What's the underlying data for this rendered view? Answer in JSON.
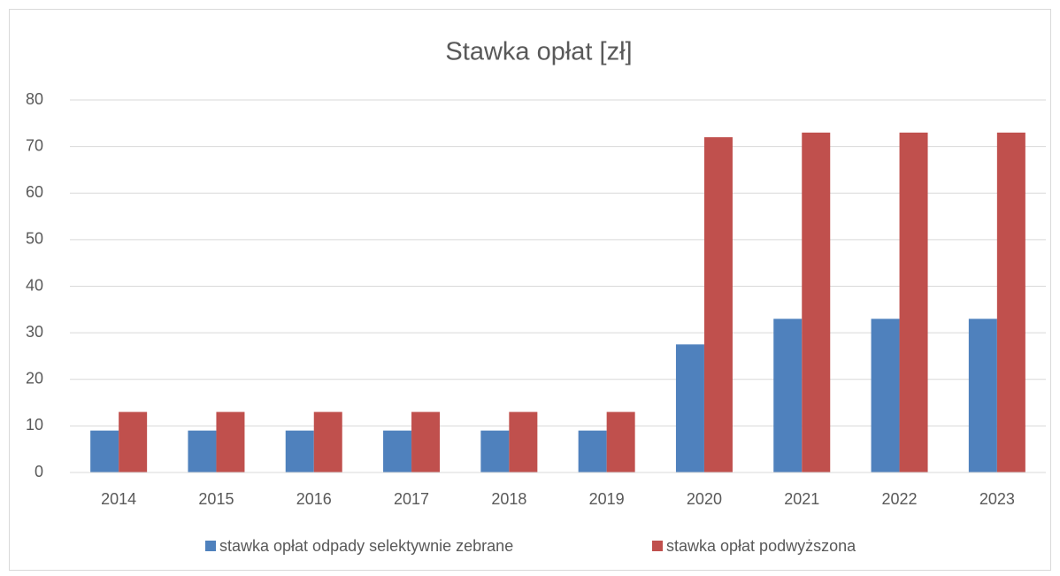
{
  "chart_data": {
    "type": "bar",
    "title": "Stawka opłat [zł]",
    "categories": [
      "2014",
      "2015",
      "2016",
      "2017",
      "2018",
      "2019",
      "2020",
      "2021",
      "2022",
      "2023"
    ],
    "series": [
      {
        "name": "stawka opłat odpady selektywnie zebrane",
        "color": "#4f81bd",
        "values": [
          9,
          9,
          9,
          9,
          9,
          9,
          27.5,
          33,
          33,
          33
        ]
      },
      {
        "name": "stawka opłat podwyższona",
        "color": "#c0504d",
        "values": [
          13,
          13,
          13,
          13,
          13,
          13,
          72,
          73,
          73,
          73
        ]
      }
    ],
    "ylim": [
      0,
      80
    ],
    "yticks": [
      0,
      10,
      20,
      30,
      40,
      50,
      60,
      70,
      80
    ],
    "grid": true,
    "legend": "bottom"
  }
}
